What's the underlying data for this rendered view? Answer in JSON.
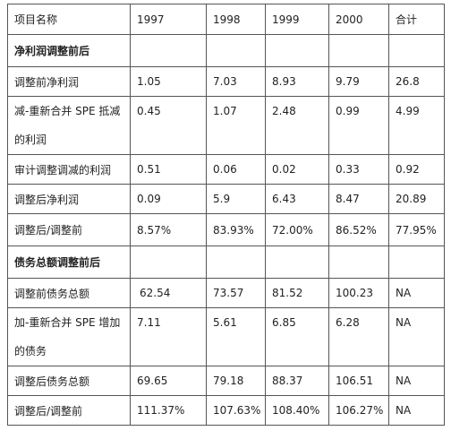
{
  "header": [
    "项目名称",
    "1997",
    "1998",
    "1999",
    "2000",
    "合计"
  ],
  "sections": [
    {
      "title": "净利润调整前后",
      "rows": [
        {
          "label": "调整前净利润",
          "values": [
            "1.05",
            "7.03",
            "8.93",
            "9.79",
            "26.8"
          ]
        },
        {
          "label": "减-重新合并 SPE 抵减的利润",
          "values": [
            "0.45",
            "1.07",
            "2.48",
            "0.99",
            "4.99"
          ]
        },
        {
          "label": "审计调整调减的利润",
          "values": [
            "0.51",
            "0.06",
            "0.02",
            "0.33",
            "0.92"
          ]
        },
        {
          "label": "调整后净利润",
          "values": [
            "0.09",
            "5.9",
            "6.43",
            "8.47",
            "20.89"
          ]
        },
        {
          "label": "调整后/调整前",
          "values": [
            "8.57%",
            "83.93%",
            "72.00%",
            "86.52%",
            "77.95%"
          ]
        }
      ]
    },
    {
      "title": "债务总额调整前后",
      "rows": [
        {
          "label": "调整前债务总额",
          "values": [
            "62.54",
            "73.57",
            "81.52",
            "100.23",
            "NA"
          ]
        },
        {
          "label": "加-重新合并 SPE 增加的债务",
          "values": [
            "7.11",
            "5.61",
            "6.85",
            "6.28",
            "NA"
          ]
        },
        {
          "label": "调整后债务总额",
          "values": [
            "69.65",
            "79.18",
            "88.37",
            "106.51",
            "NA"
          ]
        },
        {
          "label": "调整后/调整前",
          "values": [
            "111.37%",
            "107.63%",
            "108.40%",
            "106.27%",
            "NA"
          ]
        }
      ]
    }
  ]
}
